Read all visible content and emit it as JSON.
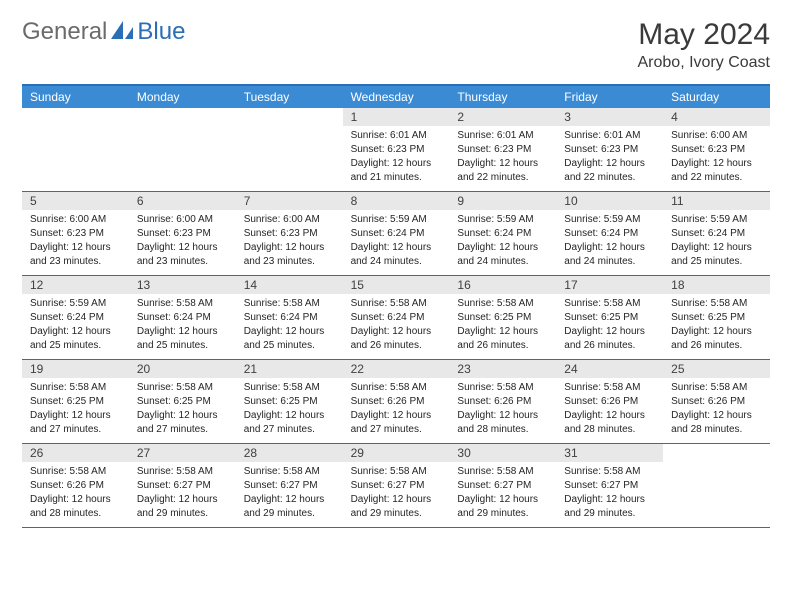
{
  "logo": {
    "general": "General",
    "blue": "Blue"
  },
  "title": "May 2024",
  "location": "Arobo, Ivory Coast",
  "weekdays": [
    "Sunday",
    "Monday",
    "Tuesday",
    "Wednesday",
    "Thursday",
    "Friday",
    "Saturday"
  ],
  "colors": {
    "header_bg": "#3b8bd4",
    "border": "#2a6fb5",
    "daynum_bg": "#e8e8e8",
    "text": "#252525",
    "logo_gray": "#6b6b6b",
    "logo_blue": "#2a6fb5"
  },
  "weeks": [
    [
      {
        "n": "",
        "empty": true
      },
      {
        "n": "",
        "empty": true
      },
      {
        "n": "",
        "empty": true
      },
      {
        "n": "1",
        "sr": "6:01 AM",
        "ss": "6:23 PM",
        "dl1": "Daylight: 12 hours",
        "dl2": "and 21 minutes."
      },
      {
        "n": "2",
        "sr": "6:01 AM",
        "ss": "6:23 PM",
        "dl1": "Daylight: 12 hours",
        "dl2": "and 22 minutes."
      },
      {
        "n": "3",
        "sr": "6:01 AM",
        "ss": "6:23 PM",
        "dl1": "Daylight: 12 hours",
        "dl2": "and 22 minutes."
      },
      {
        "n": "4",
        "sr": "6:00 AM",
        "ss": "6:23 PM",
        "dl1": "Daylight: 12 hours",
        "dl2": "and 22 minutes."
      }
    ],
    [
      {
        "n": "5",
        "sr": "6:00 AM",
        "ss": "6:23 PM",
        "dl1": "Daylight: 12 hours",
        "dl2": "and 23 minutes."
      },
      {
        "n": "6",
        "sr": "6:00 AM",
        "ss": "6:23 PM",
        "dl1": "Daylight: 12 hours",
        "dl2": "and 23 minutes."
      },
      {
        "n": "7",
        "sr": "6:00 AM",
        "ss": "6:23 PM",
        "dl1": "Daylight: 12 hours",
        "dl2": "and 23 minutes."
      },
      {
        "n": "8",
        "sr": "5:59 AM",
        "ss": "6:24 PM",
        "dl1": "Daylight: 12 hours",
        "dl2": "and 24 minutes."
      },
      {
        "n": "9",
        "sr": "5:59 AM",
        "ss": "6:24 PM",
        "dl1": "Daylight: 12 hours",
        "dl2": "and 24 minutes."
      },
      {
        "n": "10",
        "sr": "5:59 AM",
        "ss": "6:24 PM",
        "dl1": "Daylight: 12 hours",
        "dl2": "and 24 minutes."
      },
      {
        "n": "11",
        "sr": "5:59 AM",
        "ss": "6:24 PM",
        "dl1": "Daylight: 12 hours",
        "dl2": "and 25 minutes."
      }
    ],
    [
      {
        "n": "12",
        "sr": "5:59 AM",
        "ss": "6:24 PM",
        "dl1": "Daylight: 12 hours",
        "dl2": "and 25 minutes."
      },
      {
        "n": "13",
        "sr": "5:58 AM",
        "ss": "6:24 PM",
        "dl1": "Daylight: 12 hours",
        "dl2": "and 25 minutes."
      },
      {
        "n": "14",
        "sr": "5:58 AM",
        "ss": "6:24 PM",
        "dl1": "Daylight: 12 hours",
        "dl2": "and 25 minutes."
      },
      {
        "n": "15",
        "sr": "5:58 AM",
        "ss": "6:24 PM",
        "dl1": "Daylight: 12 hours",
        "dl2": "and 26 minutes."
      },
      {
        "n": "16",
        "sr": "5:58 AM",
        "ss": "6:25 PM",
        "dl1": "Daylight: 12 hours",
        "dl2": "and 26 minutes."
      },
      {
        "n": "17",
        "sr": "5:58 AM",
        "ss": "6:25 PM",
        "dl1": "Daylight: 12 hours",
        "dl2": "and 26 minutes."
      },
      {
        "n": "18",
        "sr": "5:58 AM",
        "ss": "6:25 PM",
        "dl1": "Daylight: 12 hours",
        "dl2": "and 26 minutes."
      }
    ],
    [
      {
        "n": "19",
        "sr": "5:58 AM",
        "ss": "6:25 PM",
        "dl1": "Daylight: 12 hours",
        "dl2": "and 27 minutes."
      },
      {
        "n": "20",
        "sr": "5:58 AM",
        "ss": "6:25 PM",
        "dl1": "Daylight: 12 hours",
        "dl2": "and 27 minutes."
      },
      {
        "n": "21",
        "sr": "5:58 AM",
        "ss": "6:25 PM",
        "dl1": "Daylight: 12 hours",
        "dl2": "and 27 minutes."
      },
      {
        "n": "22",
        "sr": "5:58 AM",
        "ss": "6:26 PM",
        "dl1": "Daylight: 12 hours",
        "dl2": "and 27 minutes."
      },
      {
        "n": "23",
        "sr": "5:58 AM",
        "ss": "6:26 PM",
        "dl1": "Daylight: 12 hours",
        "dl2": "and 28 minutes."
      },
      {
        "n": "24",
        "sr": "5:58 AM",
        "ss": "6:26 PM",
        "dl1": "Daylight: 12 hours",
        "dl2": "and 28 minutes."
      },
      {
        "n": "25",
        "sr": "5:58 AM",
        "ss": "6:26 PM",
        "dl1": "Daylight: 12 hours",
        "dl2": "and 28 minutes."
      }
    ],
    [
      {
        "n": "26",
        "sr": "5:58 AM",
        "ss": "6:26 PM",
        "dl1": "Daylight: 12 hours",
        "dl2": "and 28 minutes."
      },
      {
        "n": "27",
        "sr": "5:58 AM",
        "ss": "6:27 PM",
        "dl1": "Daylight: 12 hours",
        "dl2": "and 29 minutes."
      },
      {
        "n": "28",
        "sr": "5:58 AM",
        "ss": "6:27 PM",
        "dl1": "Daylight: 12 hours",
        "dl2": "and 29 minutes."
      },
      {
        "n": "29",
        "sr": "5:58 AM",
        "ss": "6:27 PM",
        "dl1": "Daylight: 12 hours",
        "dl2": "and 29 minutes."
      },
      {
        "n": "30",
        "sr": "5:58 AM",
        "ss": "6:27 PM",
        "dl1": "Daylight: 12 hours",
        "dl2": "and 29 minutes."
      },
      {
        "n": "31",
        "sr": "5:58 AM",
        "ss": "6:27 PM",
        "dl1": "Daylight: 12 hours",
        "dl2": "and 29 minutes."
      },
      {
        "n": "",
        "empty": true
      }
    ]
  ],
  "labels": {
    "sunrise_prefix": "Sunrise: ",
    "sunset_prefix": "Sunset: "
  }
}
